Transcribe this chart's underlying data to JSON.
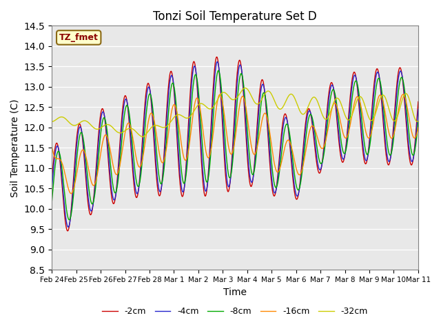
{
  "title": "Tonzi Soil Temperature Set D",
  "xlabel": "Time",
  "ylabel": "Soil Temperature (C)",
  "ylim": [
    8.5,
    14.5
  ],
  "series_colors": [
    "#cc0000",
    "#2222cc",
    "#00aa00",
    "#ff8800",
    "#cccc00"
  ],
  "series_labels": [
    "-2cm",
    "-4cm",
    "-8cm",
    "-16cm",
    "-32cm"
  ],
  "legend_label": "TZ_fmet",
  "xtick_labels": [
    "Feb 24",
    "Feb 25",
    "Feb 26",
    "Feb 27",
    "Feb 28",
    "Mar 1",
    "Mar 2",
    "Mar 3",
    "Mar 4",
    "Mar 5",
    "Mar 6",
    "Mar 7",
    "Mar 8",
    "Mar 9",
    "Mar 10",
    "Mar 11"
  ],
  "background_color": "#e8e8e8",
  "n_points": 1600
}
